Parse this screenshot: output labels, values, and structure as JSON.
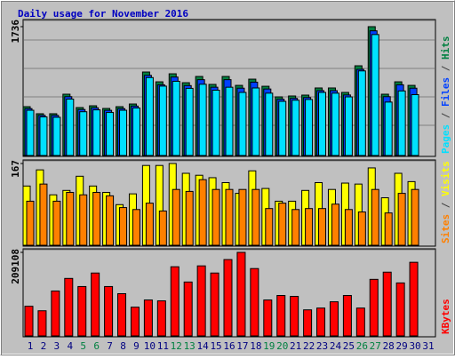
{
  "chart_data": [
    {
      "type": "bar",
      "title": "Daily usage for November 2016",
      "series": [
        {
          "name": "Hits",
          "color": "#008040",
          "values": [
            658,
            563,
            563,
            826,
            646,
            670,
            634,
            658,
            694,
            1125,
            993,
            1101,
            981,
            1065,
            958,
            1065,
            945,
            1029,
            933,
            790,
            802,
            814,
            910,
            910,
            850,
            1209,
            1736,
            826,
            993,
            945,
            null
          ]
        },
        {
          "name": "Files",
          "color": "#0040ff",
          "values": [
            632,
            541,
            541,
            793,
            620,
            643,
            609,
            632,
            666,
            1080,
            953,
            1057,
            942,
            1022,
            920,
            1022,
            907,
            988,
            896,
            758,
            770,
            781,
            874,
            874,
            816,
            1161,
            1680,
            793,
            953,
            907,
            null
          ]
        },
        {
          "name": "Pages",
          "color": "#00e0ff",
          "values": [
            610,
            520,
            515,
            760,
            590,
            615,
            580,
            610,
            640,
            1050,
            935,
            1000,
            905,
            960,
            880,
            920,
            850,
            910,
            840,
            730,
            745,
            755,
            850,
            840,
            790,
            1140,
            1630,
            720,
            870,
            820,
            null
          ]
        }
      ],
      "ylim": [
        0,
        1736
      ],
      "yticks": [
        1736
      ]
    },
    {
      "type": "bar",
      "series": [
        {
          "name": "Visits",
          "color": "#ffff00",
          "values": [
            121,
            154,
            103,
            112,
            141,
            121,
            108,
            83,
            105,
            163,
            163,
            167,
            147,
            143,
            138,
            128,
            106,
            152,
            116,
            90,
            90,
            112,
            128,
            114,
            127,
            125,
            158,
            97,
            147,
            130,
            null
          ]
        },
        {
          "name": "Sites",
          "color": "#ff8000",
          "values": [
            90,
            125,
            90,
            108,
            103,
            108,
            101,
            77,
            73,
            86,
            70,
            114,
            110,
            134,
            114,
            114,
            114,
            114,
            75,
            86,
            73,
            75,
            75,
            84,
            73,
            68,
            114,
            66,
            106,
            114,
            null
          ]
        }
      ],
      "ylim": [
        0,
        167
      ],
      "yticks": [
        167
      ]
    },
    {
      "type": "bar",
      "categories": [
        "1",
        "2",
        "3",
        "4",
        "5",
        "6",
        "7",
        "8",
        "9",
        "10",
        "11",
        "12",
        "13",
        "14",
        "15",
        "16",
        "17",
        "18",
        "19",
        "20",
        "21",
        "22",
        "23",
        "24",
        "25",
        "26",
        "27",
        "28",
        "29",
        "30",
        "31"
      ],
      "category_colors": [
        "#000080",
        "#000080",
        "#000080",
        "#000080",
        "#008040",
        "#008040",
        "#000080",
        "#000080",
        "#000080",
        "#000080",
        "#000080",
        "#008040",
        "#008040",
        "#000080",
        "#000080",
        "#000080",
        "#000080",
        "#000080",
        "#008040",
        "#008040",
        "#000080",
        "#000080",
        "#000080",
        "#000080",
        "#000080",
        "#008040",
        "#008040",
        "#000080",
        "#000080",
        "#000080",
        "#000080"
      ],
      "series": [
        {
          "name": "KBytes",
          "color": "#ff0000",
          "values": [
            74200,
            62900,
            112400,
            143900,
            123600,
            157400,
            123600,
            105700,
            71900,
            89900,
            87700,
            173100,
            134900,
            175300,
            157400,
            191100,
            209108,
            168600,
            89900,
            101200,
            98900,
            65200,
            69700,
            85400,
            101200,
            69700,
            141600,
            159600,
            132600,
            184300,
            null
          ]
        }
      ],
      "ylim": [
        0,
        209108
      ],
      "yticks": [
        209108
      ]
    }
  ]
}
